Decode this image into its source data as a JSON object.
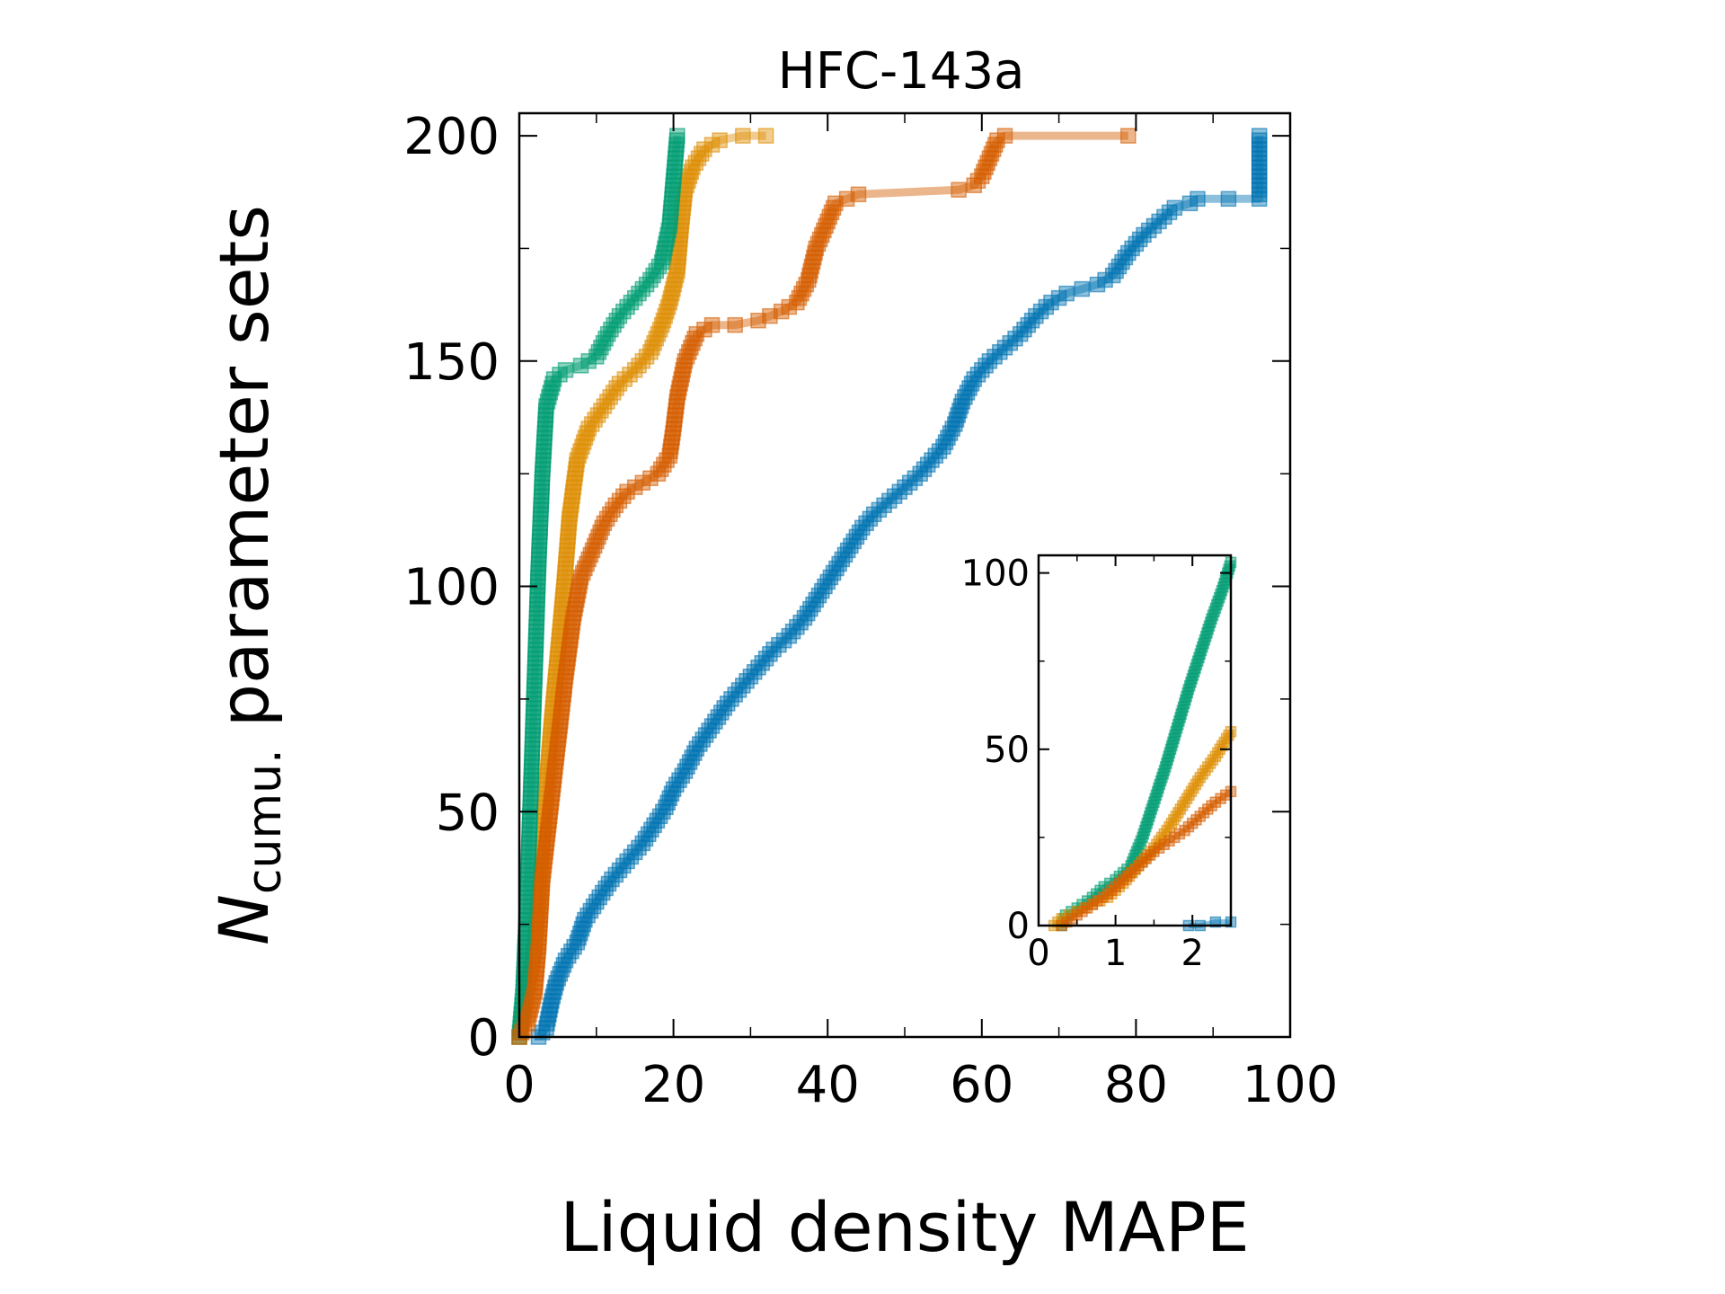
{
  "chart_data": [
    {
      "type": "line",
      "title": "HFC-143a",
      "xlabel": "Liquid density MAPE",
      "ylabel_main": "N",
      "ylabel_sub": "cumu.",
      "ylabel_rest": "parameter sets",
      "xlim": [
        0,
        100
      ],
      "ylim": [
        0,
        205
      ],
      "xticks": [
        0,
        20,
        40,
        60,
        80,
        100
      ],
      "yticks": [
        0,
        50,
        100,
        150,
        200
      ],
      "grid": false,
      "legend": "none",
      "marker": "square",
      "series": [
        {
          "color": "#0173b2",
          "points": [
            [
              2.5,
              0
            ],
            [
              3.5,
              2
            ],
            [
              4.2,
              8
            ],
            [
              4.8,
              12
            ],
            [
              6,
              17
            ],
            [
              7.5,
              21
            ],
            [
              8.5,
              26
            ],
            [
              10,
              30
            ],
            [
              12,
              35
            ],
            [
              14,
              39
            ],
            [
              16,
              43
            ],
            [
              17.5,
              47
            ],
            [
              19,
              51
            ],
            [
              20,
              55
            ],
            [
              21.5,
              59
            ],
            [
              23,
              64
            ],
            [
              25,
              69
            ],
            [
              27,
              74
            ],
            [
              29,
              78
            ],
            [
              31,
              82
            ],
            [
              33,
              86
            ],
            [
              35,
              89
            ],
            [
              37,
              93
            ],
            [
              38.5,
              97
            ],
            [
              40,
              101
            ],
            [
              41.5,
              105
            ],
            [
              43,
              109
            ],
            [
              44.5,
              113
            ],
            [
              46,
              116
            ],
            [
              48,
              119
            ],
            [
              50,
              122
            ],
            [
              52,
              125
            ],
            [
              53.5,
              128
            ],
            [
              55,
              131
            ],
            [
              56.5,
              136
            ],
            [
              57.5,
              141
            ],
            [
              59,
              146
            ],
            [
              61,
              150
            ],
            [
              63,
              153
            ],
            [
              65,
              156
            ],
            [
              67,
              160
            ],
            [
              69,
              163
            ],
            [
              71,
              165
            ],
            [
              73,
              166
            ],
            [
              75,
              167
            ],
            [
              77,
              169
            ],
            [
              79,
              174
            ],
            [
              81,
              178
            ],
            [
              83,
              181
            ],
            [
              85,
              184
            ],
            [
              87,
              185
            ],
            [
              88,
              186
            ],
            [
              92,
              186
            ],
            [
              96,
              186
            ],
            [
              96,
              190
            ],
            [
              96,
              195
            ],
            [
              96,
              200
            ]
          ]
        },
        {
          "color": "#de8f05",
          "points": [
            [
              0,
              0
            ],
            [
              0.5,
              5
            ],
            [
              1.2,
              12
            ],
            [
              2,
              20
            ],
            [
              2.5,
              30
            ],
            [
              3,
              42
            ],
            [
              3.5,
              55
            ],
            [
              4.2,
              70
            ],
            [
              5,
              85
            ],
            [
              5.8,
              100
            ],
            [
              6.5,
              115
            ],
            [
              7.5,
              128
            ],
            [
              9,
              135
            ],
            [
              11,
              140
            ],
            [
              13,
              145
            ],
            [
              15,
              148
            ],
            [
              17,
              152
            ],
            [
              18.5,
              158
            ],
            [
              19.5,
              163
            ],
            [
              20.5,
              170
            ],
            [
              21,
              180
            ],
            [
              21.5,
              188
            ],
            [
              22.5,
              193
            ],
            [
              24,
              197
            ],
            [
              26,
              199
            ],
            [
              29,
              200
            ],
            [
              32,
              200
            ]
          ]
        },
        {
          "color": "#029e73",
          "points": [
            [
              0,
              0
            ],
            [
              0.5,
              10
            ],
            [
              1,
              30
            ],
            [
              1.5,
              55
            ],
            [
              2,
              80
            ],
            [
              2.5,
              105
            ],
            [
              3,
              125
            ],
            [
              3.5,
              140
            ],
            [
              4.5,
              146
            ],
            [
              6,
              148
            ],
            [
              8,
              149
            ],
            [
              10,
              151
            ],
            [
              11.5,
              156
            ],
            [
              13,
              160
            ],
            [
              15,
              164
            ],
            [
              17,
              168
            ],
            [
              18.5,
              172
            ],
            [
              19.5,
              180
            ],
            [
              20,
              190
            ],
            [
              20.5,
              200
            ]
          ]
        },
        {
          "color": "#d55e00",
          "points": [
            [
              0,
              0
            ],
            [
              1,
              3
            ],
            [
              2,
              10
            ],
            [
              2.5,
              20
            ],
            [
              3,
              35
            ],
            [
              4,
              50
            ],
            [
              5,
              65
            ],
            [
              6,
              80
            ],
            [
              7,
              93
            ],
            [
              8,
              102
            ],
            [
              9.5,
              108
            ],
            [
              11,
              114
            ],
            [
              12.5,
              118
            ],
            [
              14,
              121
            ],
            [
              16,
              123
            ],
            [
              18,
              125
            ],
            [
              19.5,
              129
            ],
            [
              20,
              135
            ],
            [
              20.5,
              142
            ],
            [
              21.5,
              150
            ],
            [
              23,
              156
            ],
            [
              25,
              158
            ],
            [
              28,
              158
            ],
            [
              31,
              159
            ],
            [
              34,
              161
            ],
            [
              36,
              163
            ],
            [
              37.5,
              168
            ],
            [
              38.5,
              175
            ],
            [
              40,
              181
            ],
            [
              41,
              185
            ],
            [
              42.5,
              186
            ],
            [
              44,
              187
            ],
            [
              57,
              188
            ],
            [
              59,
              189
            ],
            [
              60,
              191
            ],
            [
              61,
              195
            ],
            [
              62,
              199
            ],
            [
              63,
              200
            ],
            [
              79,
              200
            ]
          ]
        }
      ]
    },
    {
      "type": "line",
      "note_role": "inset",
      "xlim": [
        0,
        2.5
      ],
      "ylim": [
        0,
        105
      ],
      "xticks": [
        0,
        1,
        2
      ],
      "yticks": [
        0,
        50,
        100
      ],
      "series": [
        {
          "color": "#029e73",
          "points": [
            [
              0.3,
              0
            ],
            [
              0.35,
              3
            ],
            [
              0.5,
              5
            ],
            [
              0.7,
              8
            ],
            [
              0.85,
              11
            ],
            [
              1,
              13
            ],
            [
              1.2,
              17
            ],
            [
              1.35,
              25
            ],
            [
              1.5,
              35
            ],
            [
              1.65,
              45
            ],
            [
              1.8,
              56
            ],
            [
              1.95,
              67
            ],
            [
              2.1,
              77
            ],
            [
              2.25,
              87
            ],
            [
              2.4,
              96
            ],
            [
              2.5,
              103
            ]
          ]
        },
        {
          "color": "#de8f05",
          "points": [
            [
              0.2,
              0
            ],
            [
              0.3,
              2
            ],
            [
              0.5,
              4
            ],
            [
              0.7,
              6
            ],
            [
              0.9,
              8
            ],
            [
              1.1,
              12
            ],
            [
              1.3,
              17
            ],
            [
              1.5,
              22
            ],
            [
              1.7,
              28
            ],
            [
              1.9,
              35
            ],
            [
              2.1,
              42
            ],
            [
              2.3,
              48
            ],
            [
              2.5,
              55
            ]
          ]
        },
        {
          "color": "#d55e00",
          "points": [
            [
              0.3,
              0
            ],
            [
              0.5,
              3
            ],
            [
              0.7,
              6
            ],
            [
              0.9,
              9
            ],
            [
              1.1,
              13
            ],
            [
              1.3,
              17
            ],
            [
              1.5,
              21
            ],
            [
              1.7,
              24
            ],
            [
              1.9,
              27
            ],
            [
              2.1,
              31
            ],
            [
              2.3,
              35
            ],
            [
              2.5,
              38
            ]
          ]
        },
        {
          "color": "#0173b2",
          "points": [
            [
              1.95,
              0
            ],
            [
              2.1,
              0
            ],
            [
              2.3,
              1
            ],
            [
              2.5,
              1
            ]
          ]
        }
      ]
    }
  ]
}
